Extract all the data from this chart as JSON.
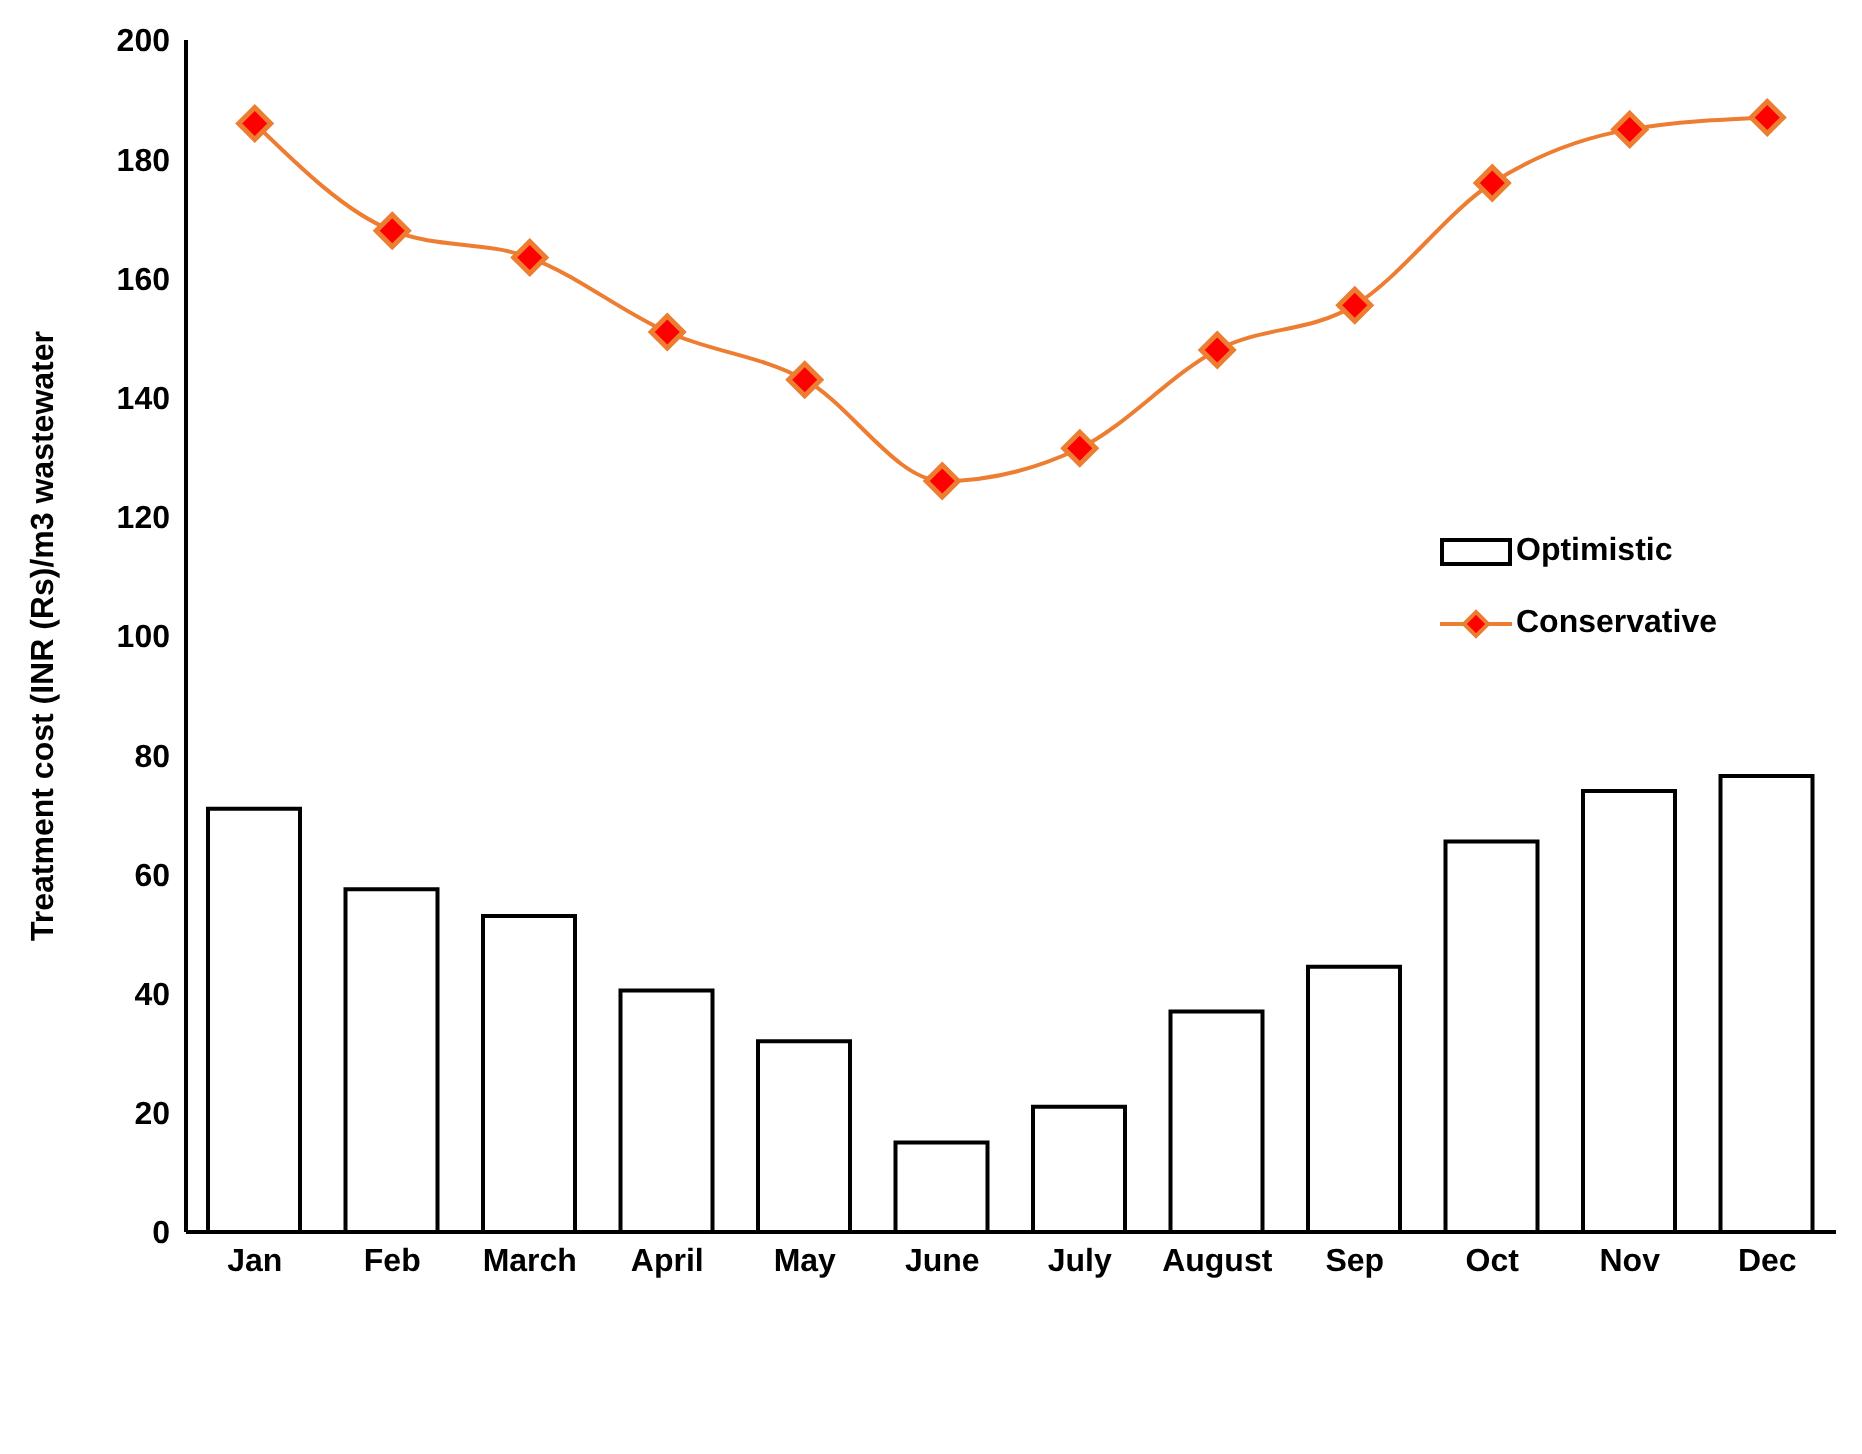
{
  "chart_data": {
    "type": "bar",
    "ylabel": "Treatment cost (INR (Rs)/m3 wastewater",
    "categories": [
      "Jan",
      "Feb",
      "March",
      "April",
      "May",
      "June",
      "July",
      "August",
      "Sep",
      "Oct",
      "Nov",
      "Dec"
    ],
    "series": [
      {
        "name": "Optimistic",
        "color": "#ffffff",
        "values": [
          71,
          57.5,
          53,
          40.5,
          32,
          15,
          21,
          37,
          44.5,
          65.5,
          74,
          76.5
        ]
      },
      {
        "name": "Conservative",
        "type": "line",
        "color": "#ed7d31",
        "marker": "diamond",
        "values": [
          186,
          168,
          163.5,
          151,
          143,
          126,
          131.5,
          148,
          155.5,
          176,
          185,
          187
        ]
      }
    ],
    "ylim": [
      0,
      200
    ],
    "yticks": [
      0,
      20,
      40,
      60,
      80,
      100,
      120,
      140,
      160,
      180,
      200
    ],
    "grid": false,
    "legend": "right"
  }
}
